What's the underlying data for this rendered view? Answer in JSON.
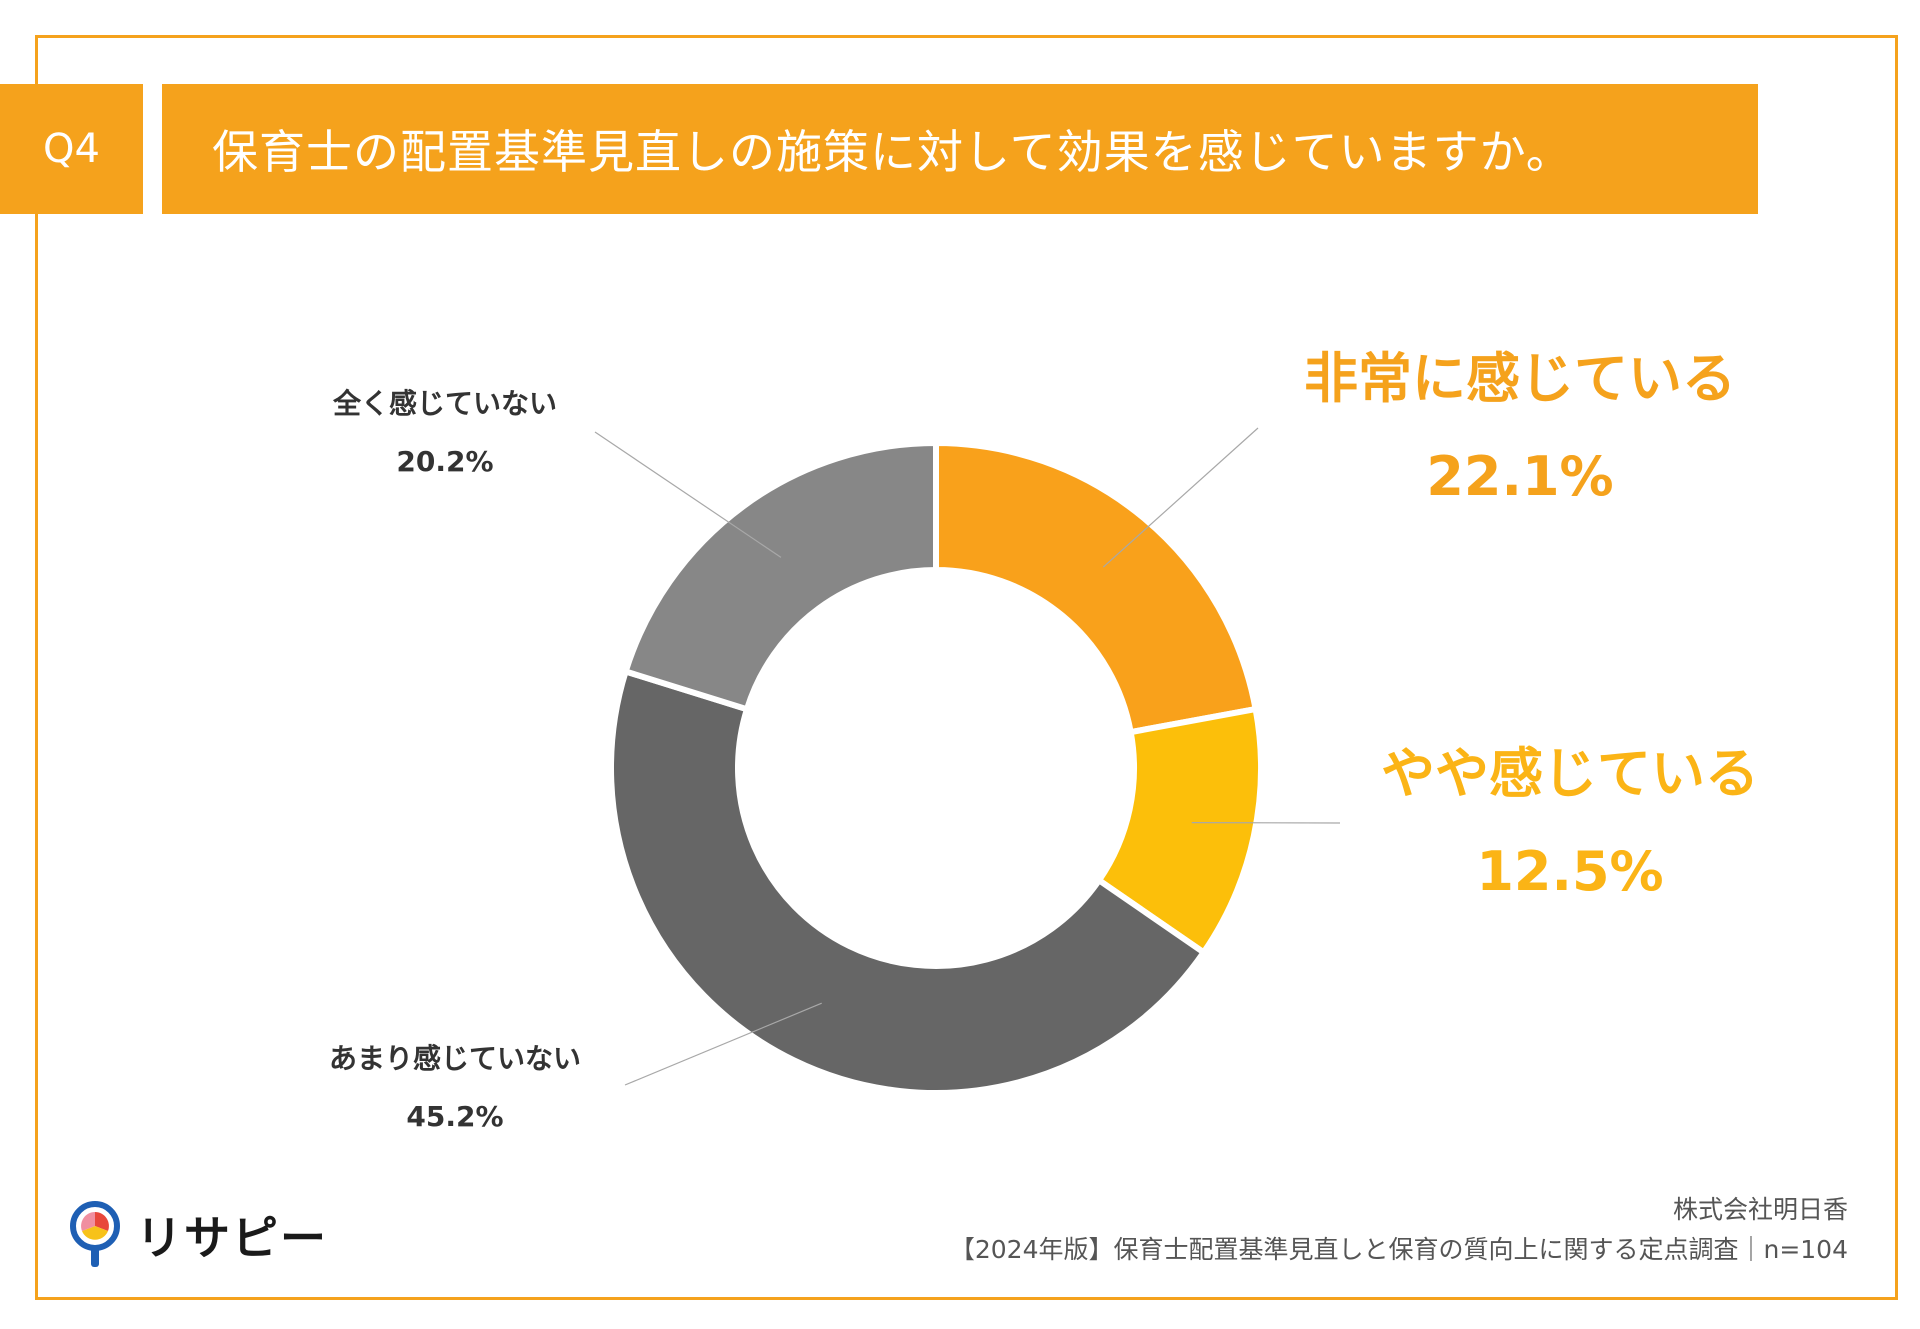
{
  "header": {
    "question_no": "Q4",
    "question": "保育士の配置基準見直しの施策に対して効果を感じていますか。"
  },
  "chart_data": {
    "type": "pie",
    "variant": "donut",
    "categories": [
      "非常に感じている",
      "やや感じている",
      "あまり感じていない",
      "全く感じていない"
    ],
    "values": [
      22.1,
      12.5,
      45.2,
      20.2
    ],
    "value_labels": [
      "22.1%",
      "12.5%",
      "45.2%",
      "20.2%"
    ],
    "colors": [
      "#f9a11b",
      "#fcbf0a",
      "#666666",
      "#878787"
    ]
  },
  "footer": {
    "company": "株式会社明日香",
    "survey": "【2024年版】保育士配置基準見直しと保育の質向上に関する定点調査｜n=104"
  },
  "logo": {
    "text": "リサピー",
    "icon": "pin-pie-icon"
  }
}
